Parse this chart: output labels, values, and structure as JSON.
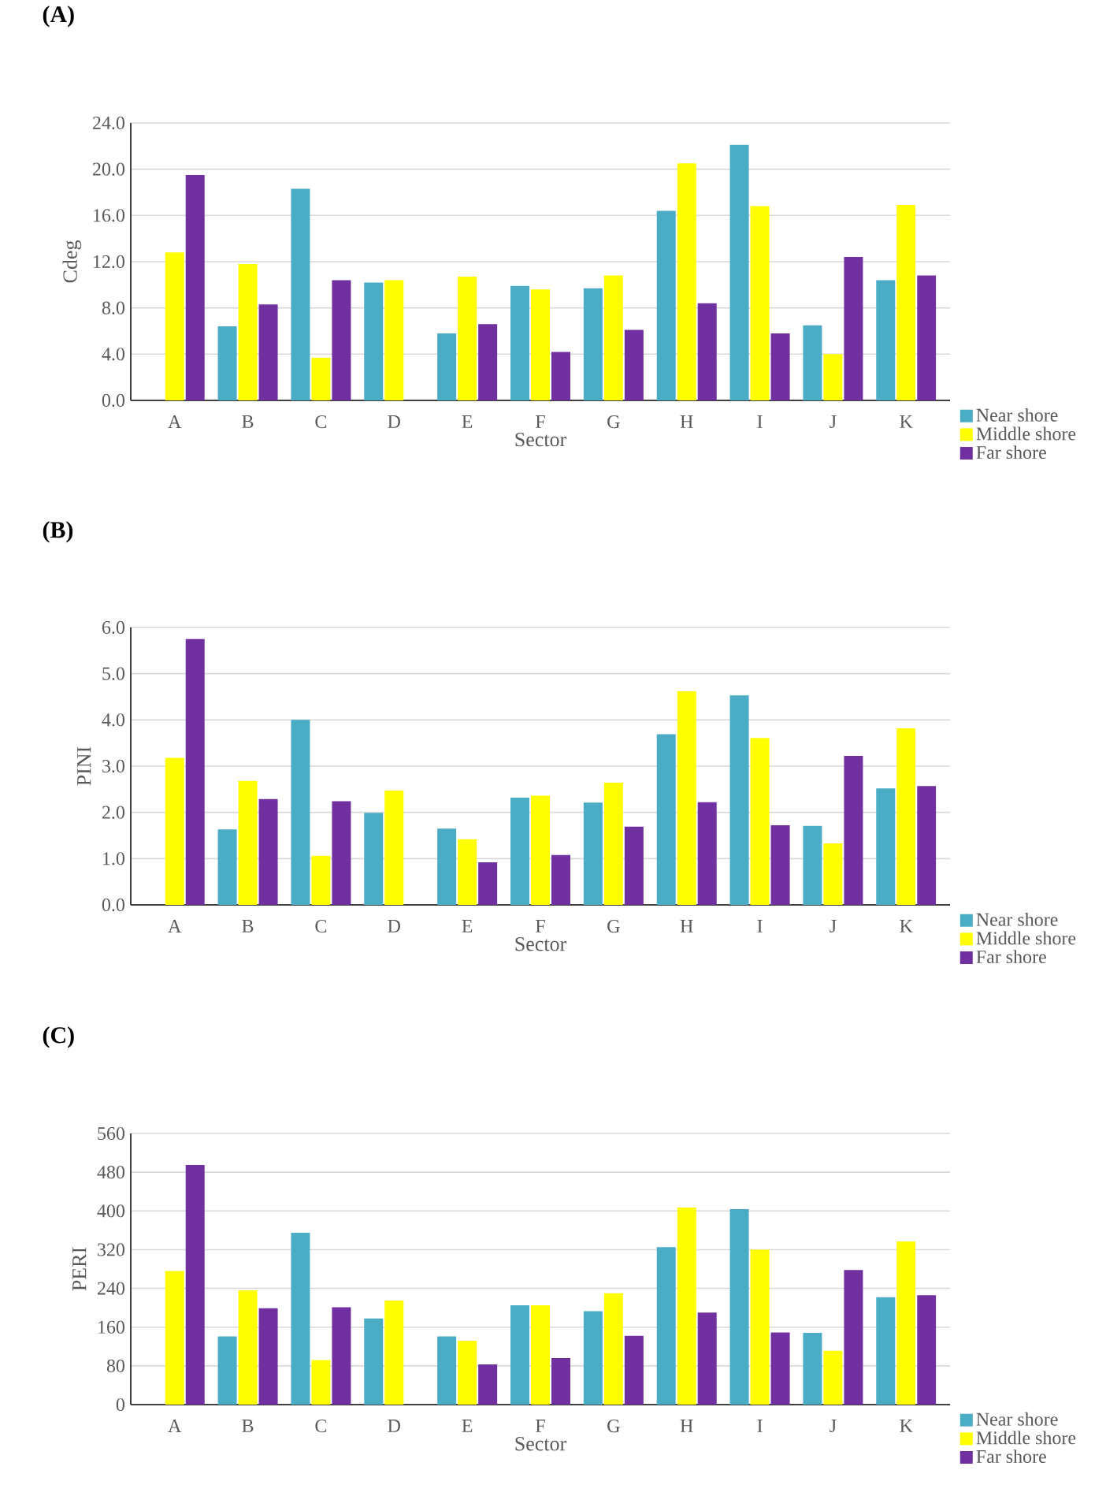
{
  "chart_data": [
    {
      "type": "bar",
      "title": "(A)",
      "xlabel": "Sector",
      "ylabel": "Cdeg",
      "categories": [
        "A",
        "B",
        "C",
        "D",
        "E",
        "F",
        "G",
        "H",
        "I",
        "J",
        "K"
      ],
      "series": [
        {
          "name": "Near shore",
          "color": "#4bacc6",
          "values": [
            null,
            6.4,
            18.3,
            10.2,
            5.8,
            9.9,
            9.7,
            16.4,
            22.1,
            6.5,
            10.4
          ]
        },
        {
          "name": "Middle shore",
          "color": "#ffff00",
          "values": [
            12.8,
            11.8,
            3.7,
            10.4,
            10.7,
            9.6,
            10.8,
            20.5,
            16.8,
            4.0,
            16.9
          ]
        },
        {
          "name": "Far shore",
          "color": "#7030a0",
          "values": [
            19.5,
            8.3,
            10.4,
            null,
            6.6,
            4.2,
            6.1,
            8.4,
            5.8,
            12.4,
            10.8
          ]
        }
      ],
      "ylim": [
        0,
        24
      ],
      "yticks": [
        {
          "value": 0,
          "label": "0.0"
        },
        {
          "value": 4,
          "label": "4.0"
        },
        {
          "value": 8,
          "label": "8.0"
        },
        {
          "value": 12,
          "label": "12.0"
        },
        {
          "value": 16,
          "label": "16.0"
        },
        {
          "value": 20,
          "label": "20.0"
        },
        {
          "value": 24,
          "label": "24.0"
        }
      ],
      "grid": "y",
      "legend": "bottom right"
    },
    {
      "type": "bar",
      "title": "(B)",
      "xlabel": "Sector",
      "ylabel": "PINI",
      "categories": [
        "A",
        "B",
        "C",
        "D",
        "E",
        "F",
        "G",
        "H",
        "I",
        "J",
        "K"
      ],
      "series": [
        {
          "name": "Near shore",
          "color": "#4bacc6",
          "values": [
            null,
            1.63,
            4.0,
            1.99,
            1.65,
            2.32,
            2.21,
            3.69,
            4.53,
            1.71,
            2.52
          ]
        },
        {
          "name": "Middle shore",
          "color": "#ffff00",
          "values": [
            3.18,
            2.68,
            1.06,
            2.47,
            1.42,
            2.36,
            2.64,
            4.62,
            3.61,
            1.33,
            3.82
          ]
        },
        {
          "name": "Far shore",
          "color": "#7030a0",
          "values": [
            5.75,
            2.29,
            2.24,
            null,
            0.92,
            1.08,
            1.69,
            2.22,
            1.72,
            3.22,
            2.57
          ]
        }
      ],
      "ylim": [
        0,
        6
      ],
      "yticks": [
        {
          "value": 0,
          "label": "0.0"
        },
        {
          "value": 1,
          "label": "1.0"
        },
        {
          "value": 2,
          "label": "2.0"
        },
        {
          "value": 3,
          "label": "3.0"
        },
        {
          "value": 4,
          "label": "4.0"
        },
        {
          "value": 5,
          "label": "5.0"
        },
        {
          "value": 6,
          "label": "6.0"
        }
      ],
      "grid": "y",
      "legend": "bottom right"
    },
    {
      "type": "bar",
      "title": "(C)",
      "xlabel": "Sector",
      "ylabel": "PERI",
      "categories": [
        "A",
        "B",
        "C",
        "D",
        "E",
        "F",
        "G",
        "H",
        "I",
        "J",
        "K"
      ],
      "series": [
        {
          "name": "Near shore",
          "color": "#4bacc6",
          "values": [
            null,
            141,
            355,
            178,
            141,
            205,
            193,
            325,
            404,
            148,
            222
          ]
        },
        {
          "name": "Middle shore",
          "color": "#ffff00",
          "values": [
            276,
            236,
            92,
            215,
            132,
            205,
            230,
            407,
            320,
            111,
            337
          ]
        },
        {
          "name": "Far shore",
          "color": "#7030a0",
          "values": [
            495,
            199,
            201,
            null,
            83,
            96,
            142,
            190,
            149,
            278,
            226
          ]
        }
      ],
      "ylim": [
        0,
        560
      ],
      "yticks": [
        0,
        80,
        160,
        240,
        320,
        400,
        480,
        560
      ],
      "grid": "y",
      "legend": "bottom right"
    }
  ]
}
